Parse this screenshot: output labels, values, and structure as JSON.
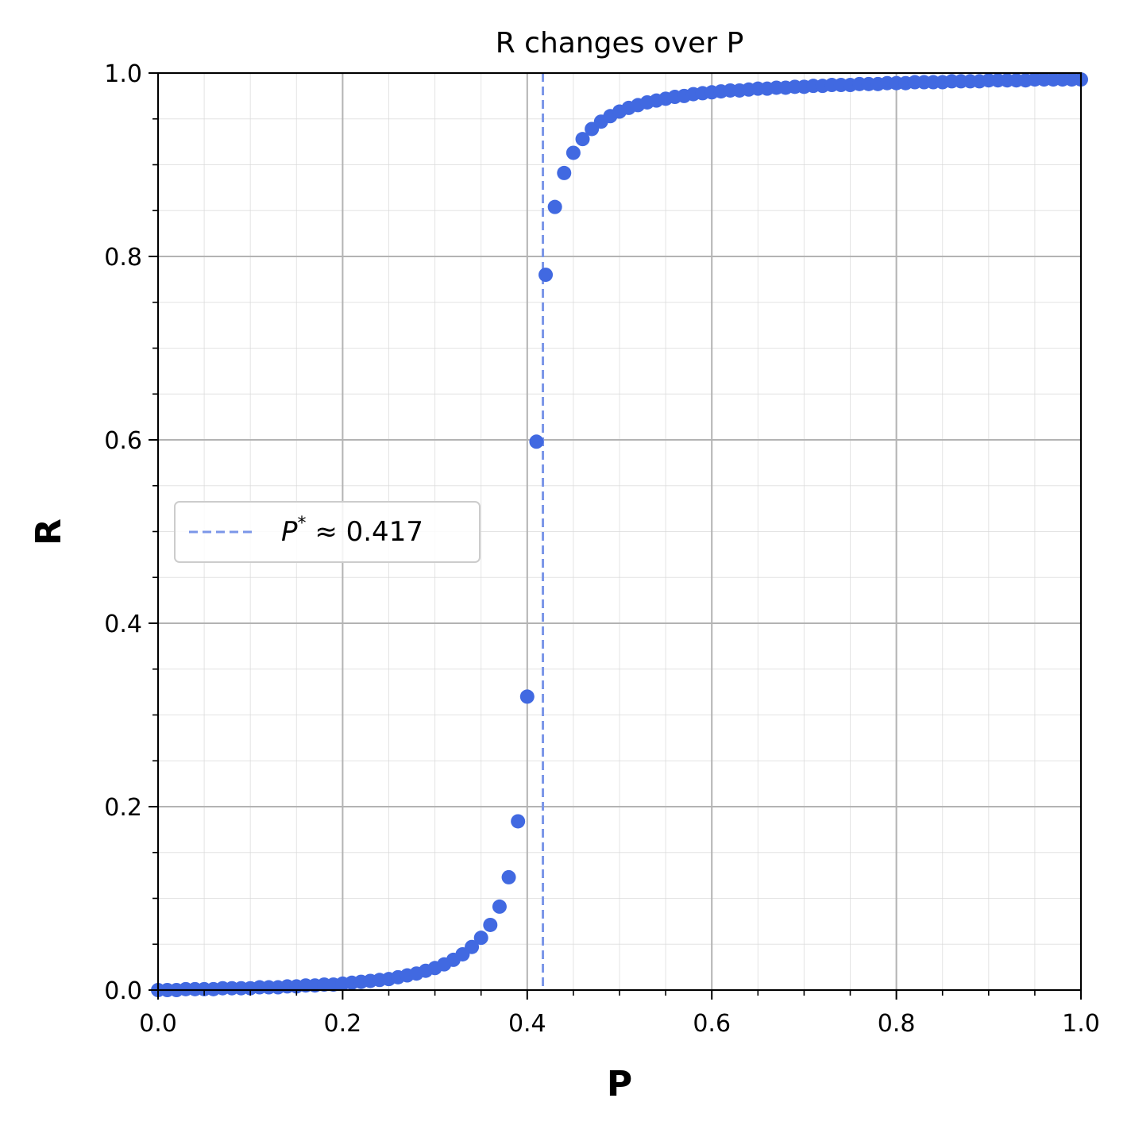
{
  "chart_data": {
    "type": "scatter",
    "title": "R changes over P",
    "xlabel": "P",
    "ylabel": "R",
    "xlim": [
      0,
      1
    ],
    "ylim": [
      0,
      1
    ],
    "x_ticks": [
      "0.0",
      "0.2",
      "0.4",
      "0.6",
      "0.8",
      "1.0"
    ],
    "y_ticks": [
      "0.0",
      "0.2",
      "0.4",
      "0.6",
      "0.8",
      "1.0"
    ],
    "grid": true,
    "minor_grid": true,
    "legend_position": "center-left",
    "marker_color": "#4169e1",
    "line_color": "#7b96e8",
    "series": [
      {
        "x": [
          0.0,
          0.01,
          0.02,
          0.03,
          0.04,
          0.05,
          0.06,
          0.07,
          0.08,
          0.09,
          0.1,
          0.11,
          0.12,
          0.13,
          0.14,
          0.15,
          0.16,
          0.17,
          0.18,
          0.19,
          0.2,
          0.21,
          0.22,
          0.23,
          0.24,
          0.25,
          0.26,
          0.27,
          0.28,
          0.29,
          0.3,
          0.31,
          0.32,
          0.33,
          0.34,
          0.35,
          0.36,
          0.37,
          0.38,
          0.39,
          0.4,
          0.41,
          0.42,
          0.43,
          0.44,
          0.45,
          0.46,
          0.47,
          0.48,
          0.49,
          0.5,
          0.51,
          0.52,
          0.53,
          0.54,
          0.55,
          0.56,
          0.57,
          0.58,
          0.59,
          0.6,
          0.61,
          0.62,
          0.63,
          0.64,
          0.65,
          0.66,
          0.67,
          0.68,
          0.69,
          0.7,
          0.71,
          0.72,
          0.73,
          0.74,
          0.75,
          0.76,
          0.77,
          0.78,
          0.79,
          0.8,
          0.81,
          0.82,
          0.83,
          0.84,
          0.85,
          0.86,
          0.87,
          0.88,
          0.89,
          0.9,
          0.91,
          0.92,
          0.93,
          0.94,
          0.95,
          0.96,
          0.97,
          0.98,
          0.99,
          1.0
        ],
        "y": [
          0.0,
          0.0,
          0.0,
          0.001,
          0.001,
          0.001,
          0.001,
          0.002,
          0.002,
          0.002,
          0.002,
          0.003,
          0.003,
          0.003,
          0.004,
          0.004,
          0.005,
          0.005,
          0.006,
          0.006,
          0.007,
          0.008,
          0.009,
          0.01,
          0.011,
          0.012,
          0.014,
          0.016,
          0.018,
          0.021,
          0.024,
          0.028,
          0.033,
          0.039,
          0.047,
          0.057,
          0.071,
          0.091,
          0.123,
          0.184,
          0.32,
          0.598,
          0.78,
          0.854,
          0.891,
          0.913,
          0.928,
          0.939,
          0.947,
          0.953,
          0.958,
          0.962,
          0.965,
          0.968,
          0.97,
          0.972,
          0.974,
          0.975,
          0.977,
          0.978,
          0.979,
          0.98,
          0.981,
          0.981,
          0.982,
          0.983,
          0.983,
          0.984,
          0.984,
          0.985,
          0.985,
          0.986,
          0.986,
          0.987,
          0.987,
          0.987,
          0.988,
          0.988,
          0.988,
          0.989,
          0.989,
          0.989,
          0.99,
          0.99,
          0.99,
          0.99,
          0.991,
          0.991,
          0.991,
          0.991,
          0.992,
          0.992,
          0.992,
          0.992,
          0.992,
          0.993,
          0.993,
          0.993,
          0.993,
          0.993,
          0.993
        ]
      }
    ],
    "vline": {
      "x": 0.417
    },
    "legend": {
      "symbol": "P",
      "superscript": "*",
      "text": " ≈ 0.417"
    }
  }
}
